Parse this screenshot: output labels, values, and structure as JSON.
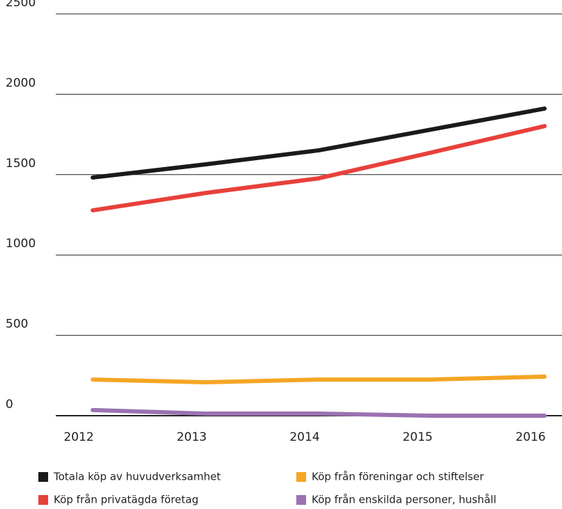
{
  "chart_data": {
    "type": "line",
    "categories": [
      "2012",
      "2013",
      "2014",
      "2015",
      "2016"
    ],
    "series": [
      {
        "name": "Totala köp av huvudverksamhet",
        "color": "#1a1a1a",
        "values": [
          1482,
          1564,
          1651,
          1781,
          1911
        ]
      },
      {
        "name": "Köp från privatägda företag",
        "color": "#e8403a",
        "values": [
          1278,
          1386,
          1477,
          1638,
          1802
        ]
      },
      {
        "name": "Köp från föreningar och stiftelser",
        "color": "#f5a623",
        "values": [
          225,
          208,
          225,
          225,
          243
        ]
      },
      {
        "name": "Köp från enskilda personer, hushåll",
        "color": "#9b72b0",
        "values": [
          35,
          13,
          13,
          0,
          0
        ]
      }
    ],
    "ylim": [
      0,
      2500
    ],
    "yticks": [
      0,
      500,
      1000,
      1500,
      2000,
      2500
    ],
    "grid": true
  }
}
